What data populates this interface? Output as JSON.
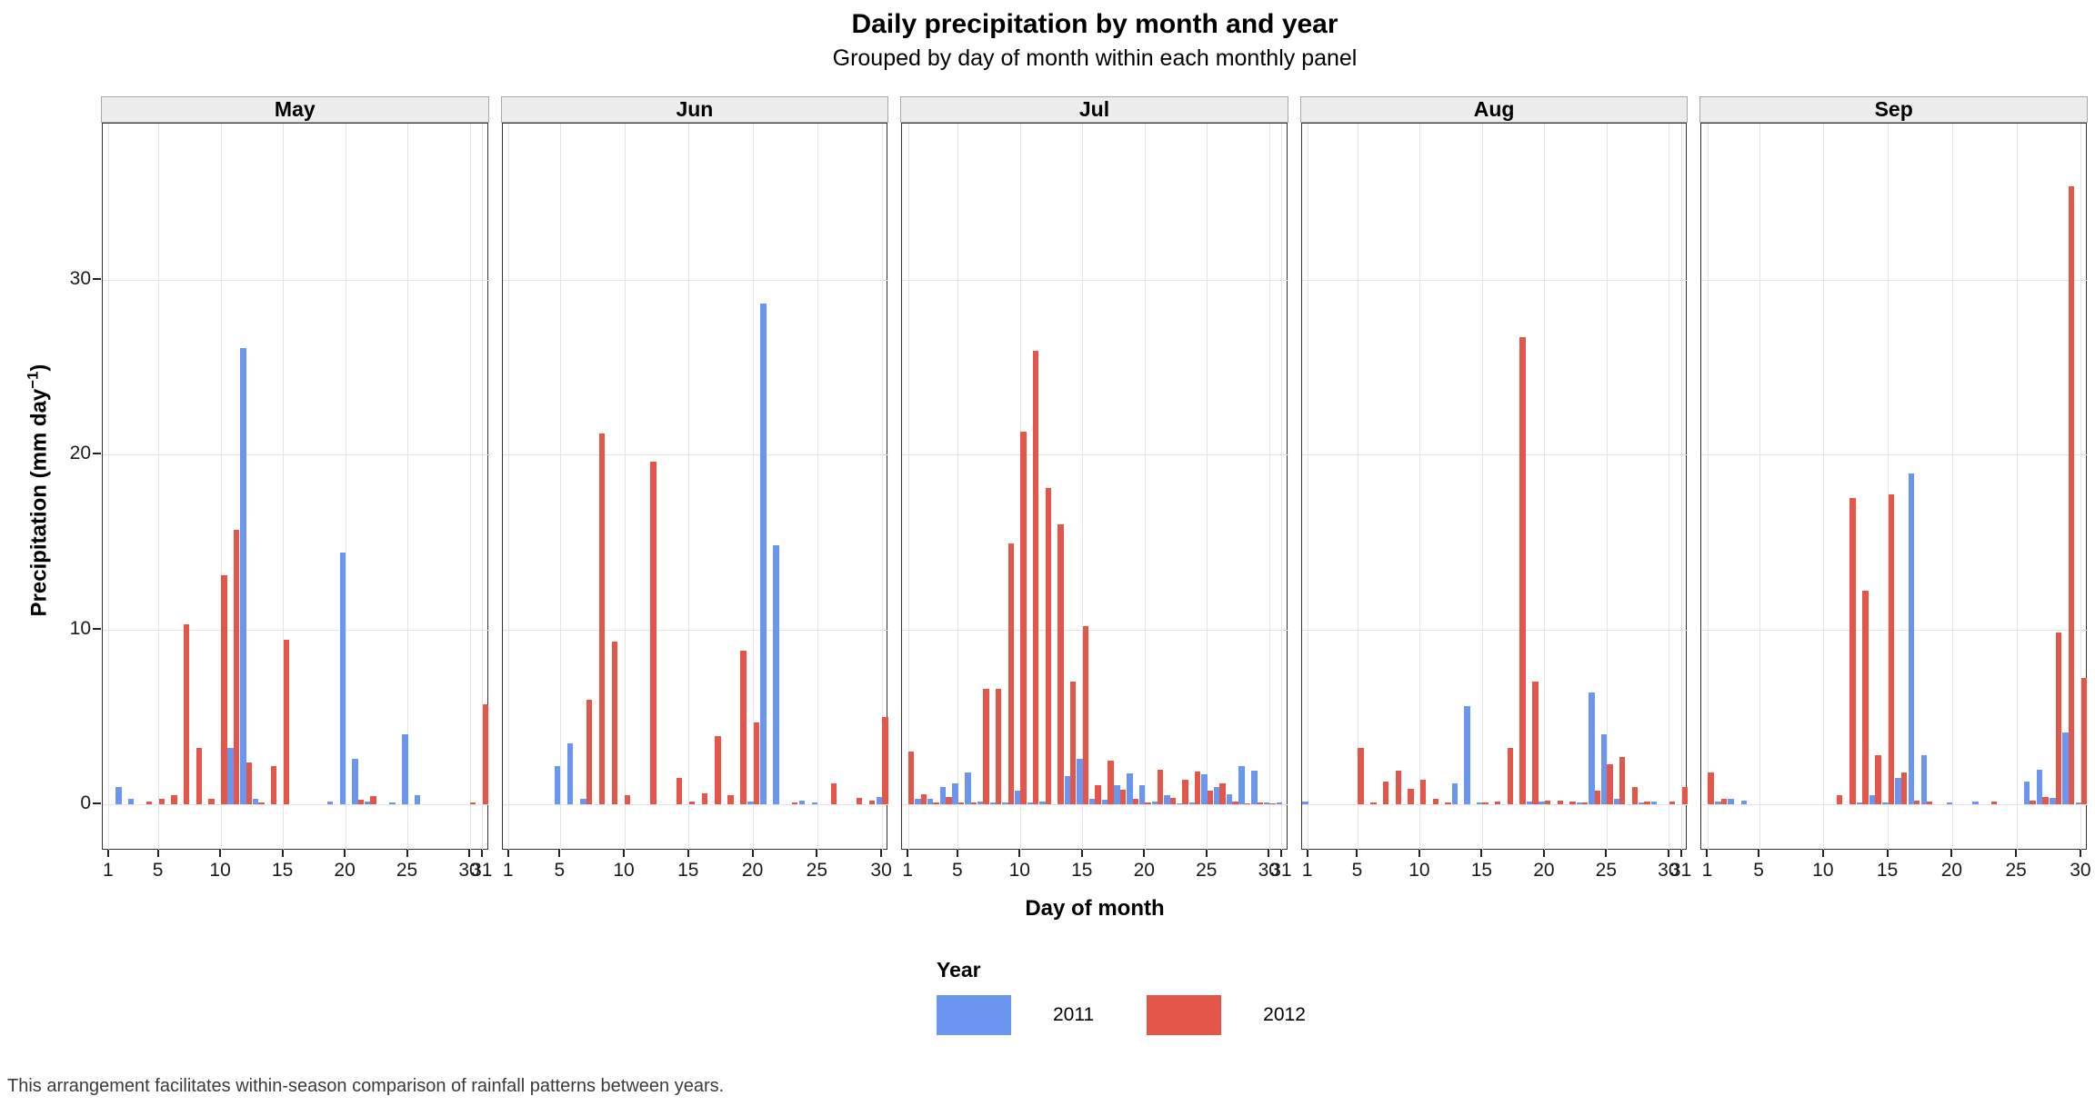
{
  "chart_data": {
    "type": "bar",
    "title": "Daily precipitation by month and year",
    "subtitle": "Grouped by day of month within each monthly panel",
    "xlabel": "Day of month",
    "ylabel_main": "Precipitation (mm day",
    "ylabel_sup": "−1",
    "ylabel_end": ")",
    "legend_title": "Year",
    "series_names": [
      "2011",
      "2012"
    ],
    "colors": {
      "y2011": "#6a96f0",
      "y2012": "#e4564a"
    },
    "grid_color": "#e4e4e4",
    "ylim": [
      0,
      36.5
    ],
    "y_breaks": [
      0,
      10,
      20,
      30
    ],
    "legend_position": "bottom",
    "caption": "This arrangement facilitates within-season comparison of rainfall patterns between years.",
    "panels": [
      {
        "month": "May",
        "days": 31,
        "x_breaks": [
          1,
          5,
          10,
          15,
          20,
          25,
          30,
          31
        ],
        "bars": [
          [
            2,
            1.0,
            0
          ],
          [
            3,
            0.3,
            0
          ],
          [
            4,
            0,
            0.15
          ],
          [
            5,
            0,
            0.3
          ],
          [
            6,
            0,
            0.5
          ],
          [
            7,
            0,
            10.3
          ],
          [
            8,
            0,
            3.2
          ],
          [
            9,
            0,
            0.3
          ],
          [
            10,
            0,
            13.1
          ],
          [
            11,
            3.2,
            15.7
          ],
          [
            12,
            26.1,
            2.4
          ],
          [
            13,
            0.3,
            0.1
          ],
          [
            14,
            0,
            2.2
          ],
          [
            15,
            0,
            9.4
          ],
          [
            19,
            0.15,
            0
          ],
          [
            20,
            14.4,
            0
          ],
          [
            21,
            2.6,
            0.25
          ],
          [
            22,
            0.15,
            0.45
          ],
          [
            24,
            0.1,
            0
          ],
          [
            25,
            4.0,
            0
          ],
          [
            26,
            0.5,
            0
          ],
          [
            30,
            0,
            0.1
          ],
          [
            31,
            0,
            5.7
          ]
        ]
      },
      {
        "month": "Jun",
        "days": 30,
        "x_breaks": [
          1,
          5,
          10,
          15,
          20,
          25,
          30
        ],
        "bars": [
          [
            5,
            2.2,
            0
          ],
          [
            6,
            3.5,
            0
          ],
          [
            7,
            0.3,
            6.0
          ],
          [
            8,
            0,
            21.2
          ],
          [
            9,
            0,
            9.3
          ],
          [
            10,
            0,
            0.5
          ],
          [
            12,
            0,
            19.6
          ],
          [
            14,
            0,
            1.5
          ],
          [
            15,
            0,
            0.15
          ],
          [
            16,
            0,
            0.6
          ],
          [
            17,
            0,
            3.9
          ],
          [
            18,
            0,
            0.5
          ],
          [
            19,
            0,
            8.8
          ],
          [
            20,
            0.15,
            4.7
          ],
          [
            21,
            28.6,
            0
          ],
          [
            22,
            14.8,
            0
          ],
          [
            23,
            0,
            0.1
          ],
          [
            24,
            0.2,
            0
          ],
          [
            25,
            0.1,
            0
          ],
          [
            26,
            0,
            1.2
          ],
          [
            28,
            0,
            0.35
          ],
          [
            29,
            0,
            0.2
          ],
          [
            30,
            0.4,
            5.0
          ]
        ]
      },
      {
        "month": "Jul",
        "days": 31,
        "x_breaks": [
          1,
          5,
          10,
          15,
          20,
          25,
          30,
          31
        ],
        "bars": [
          [
            1,
            0,
            3.0
          ],
          [
            2,
            0.3,
            0.55
          ],
          [
            3,
            0.3,
            0.1
          ],
          [
            4,
            1.0,
            0.4
          ],
          [
            5,
            1.2,
            0.1
          ],
          [
            6,
            1.8,
            0.1
          ],
          [
            7,
            0.15,
            6.6
          ],
          [
            8,
            0.1,
            6.6
          ],
          [
            9,
            0.1,
            14.9
          ],
          [
            10,
            0.8,
            21.3
          ],
          [
            11,
            0.1,
            25.9
          ],
          [
            12,
            0.15,
            18.1
          ],
          [
            13,
            0,
            16.0
          ],
          [
            14,
            1.6,
            7.0
          ],
          [
            15,
            2.6,
            10.2
          ],
          [
            16,
            0.3,
            1.1
          ],
          [
            17,
            0.25,
            2.5
          ],
          [
            18,
            1.1,
            0.85
          ],
          [
            19,
            1.75,
            0.3
          ],
          [
            20,
            1.1,
            0.1
          ],
          [
            21,
            0.15,
            2.0
          ],
          [
            22,
            0.5,
            0.35
          ],
          [
            23,
            0.05,
            1.4
          ],
          [
            24,
            0.1,
            1.85
          ],
          [
            25,
            1.7,
            0.8
          ],
          [
            26,
            1.0,
            1.2
          ],
          [
            27,
            0.55,
            0.15
          ],
          [
            28,
            2.2,
            0.05
          ],
          [
            29,
            1.9,
            0.1
          ],
          [
            30,
            0.1,
            0.05
          ],
          [
            31,
            0.1,
            0
          ]
        ]
      },
      {
        "month": "Aug",
        "days": 31,
        "x_breaks": [
          1,
          5,
          10,
          15,
          20,
          25,
          30,
          31
        ],
        "bars": [
          [
            1,
            0.15,
            0
          ],
          [
            5,
            0,
            3.2
          ],
          [
            6,
            0,
            0.1
          ],
          [
            7,
            0,
            1.3
          ],
          [
            8,
            0,
            1.9
          ],
          [
            9,
            0,
            0.9
          ],
          [
            10,
            0,
            1.4
          ],
          [
            11,
            0,
            0.3
          ],
          [
            12,
            0,
            0.1
          ],
          [
            13,
            1.2,
            0
          ],
          [
            14,
            5.6,
            0
          ],
          [
            15,
            0.1,
            0.1
          ],
          [
            16,
            0,
            0.15
          ],
          [
            17,
            0,
            3.2
          ],
          [
            18,
            0,
            26.7
          ],
          [
            19,
            0.15,
            7.0
          ],
          [
            20,
            0.15,
            0.2
          ],
          [
            21,
            0,
            0.2
          ],
          [
            22,
            0,
            0.15
          ],
          [
            23,
            0.1,
            0.1
          ],
          [
            24,
            6.4,
            0.8
          ],
          [
            25,
            4.0,
            2.3
          ],
          [
            26,
            0.3,
            2.7
          ],
          [
            27,
            0,
            1.0
          ],
          [
            28,
            0.1,
            0.15
          ],
          [
            29,
            0.15,
            0
          ],
          [
            30,
            0,
            0.15
          ],
          [
            31,
            0,
            1.0
          ]
        ]
      },
      {
        "month": "Sep",
        "days": 30,
        "x_breaks": [
          1,
          5,
          10,
          15,
          20,
          25,
          30
        ],
        "bars": [
          [
            1,
            0,
            1.8
          ],
          [
            2,
            0.15,
            0.3
          ],
          [
            3,
            0.3,
            0
          ],
          [
            4,
            0.2,
            0
          ],
          [
            11,
            0,
            0.5
          ],
          [
            12,
            0,
            17.5
          ],
          [
            13,
            0.1,
            12.2
          ],
          [
            14,
            0.5,
            2.8
          ],
          [
            15,
            0.1,
            17.7
          ],
          [
            16,
            1.5,
            1.8
          ],
          [
            17,
            18.9,
            0.2
          ],
          [
            18,
            2.8,
            0.15
          ],
          [
            20,
            0.1,
            0
          ],
          [
            22,
            0.15,
            0
          ],
          [
            23,
            0,
            0.15
          ],
          [
            26,
            1.3,
            0.2
          ],
          [
            27,
            2.0,
            0.4
          ],
          [
            28,
            0.35,
            9.8
          ],
          [
            29,
            4.1,
            35.3
          ],
          [
            30,
            0.1,
            7.2
          ]
        ]
      }
    ]
  }
}
